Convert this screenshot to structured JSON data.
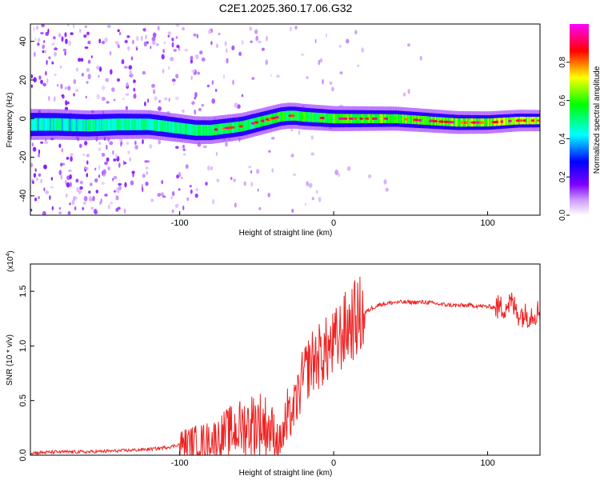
{
  "title": "C2E1.2025.360.17.06.G32",
  "chart_data": [
    {
      "type": "heatmap",
      "xlabel": "Height of straight line (km)",
      "ylabel": "Frequency (Hz)",
      "xlim": [
        -197,
        134
      ],
      "ylim": [
        -50,
        49
      ],
      "xticks": [
        -100,
        0,
        100
      ],
      "xtick_labels": [
        "-100",
        "0",
        "100"
      ],
      "yticks": [
        -40,
        -20,
        0,
        20,
        40
      ],
      "ytick_labels": [
        "-40",
        "-20",
        "0",
        "20",
        "40"
      ],
      "ridge": {
        "x": [
          -197,
          -180,
          -160,
          -140,
          -120,
          -110,
          -100,
          -90,
          -80,
          -70,
          -60,
          -50,
          -40,
          -35,
          -30,
          -25,
          -20,
          -10,
          0,
          20,
          40,
          60,
          80,
          100,
          120,
          134
        ],
        "freq": [
          -3,
          -3,
          -3.5,
          -3,
          -3,
          -4,
          -5,
          -6,
          -6,
          -5,
          -4,
          -2,
          0,
          1,
          1.5,
          1.5,
          1,
          0.5,
          0,
          0,
          0,
          -1,
          -2,
          -2,
          -1,
          -1
        ]
      },
      "colorbar": {
        "label": "Normalized spectral amplitude",
        "range": [
          0,
          1
        ],
        "ticks": [
          "0.0",
          "0.2",
          "0.4",
          "0.6",
          "0.8"
        ],
        "colormap": [
          "#ffffff",
          "#7f00ff",
          "#0000ff",
          "#00ffff",
          "#00ff00",
          "#ffff00",
          "#ff0000",
          "#ff00ff"
        ]
      }
    },
    {
      "type": "line",
      "xlabel": "Height of straight line (km)",
      "ylabel": "SNR (10 * v/v)",
      "yscale_label": "(x10",
      "yscale_exponent": "4",
      "xlim": [
        -197,
        134
      ],
      "ylim": [
        0,
        1.75
      ],
      "xticks": [
        -100,
        0,
        100
      ],
      "xtick_labels": [
        "-100",
        "0",
        "100"
      ],
      "yticks": [
        0,
        0.5,
        1.0,
        1.5
      ],
      "ytick_labels": [
        "0.0",
        "0.5",
        "1.0",
        "1.5"
      ],
      "series": [
        {
          "name": "SNR",
          "color": "#ee2222",
          "x": [
            -197,
            -180,
            -160,
            -140,
            -125,
            -115,
            -105,
            -100,
            -90,
            -80,
            -75,
            -70,
            -60,
            -50,
            -45,
            -40,
            -35,
            -30,
            -25,
            -20,
            -15,
            -10,
            -5,
            0,
            5,
            10,
            15,
            20,
            25,
            30,
            40,
            50,
            60,
            70,
            80,
            90,
            100,
            110,
            115,
            120,
            125,
            130,
            134
          ],
          "y": [
            0.02,
            0.03,
            0.03,
            0.04,
            0.05,
            0.06,
            0.08,
            0.1,
            0.12,
            0.14,
            0.16,
            0.2,
            0.25,
            0.3,
            0.28,
            0.22,
            0.12,
            0.3,
            0.45,
            0.7,
            0.85,
            0.9,
            0.95,
            1.0,
            1.1,
            1.2,
            1.25,
            1.3,
            1.35,
            1.38,
            1.4,
            1.4,
            1.4,
            1.38,
            1.37,
            1.37,
            1.36,
            1.35,
            1.4,
            1.3,
            1.28,
            1.3,
            1.32
          ]
        }
      ]
    }
  ]
}
